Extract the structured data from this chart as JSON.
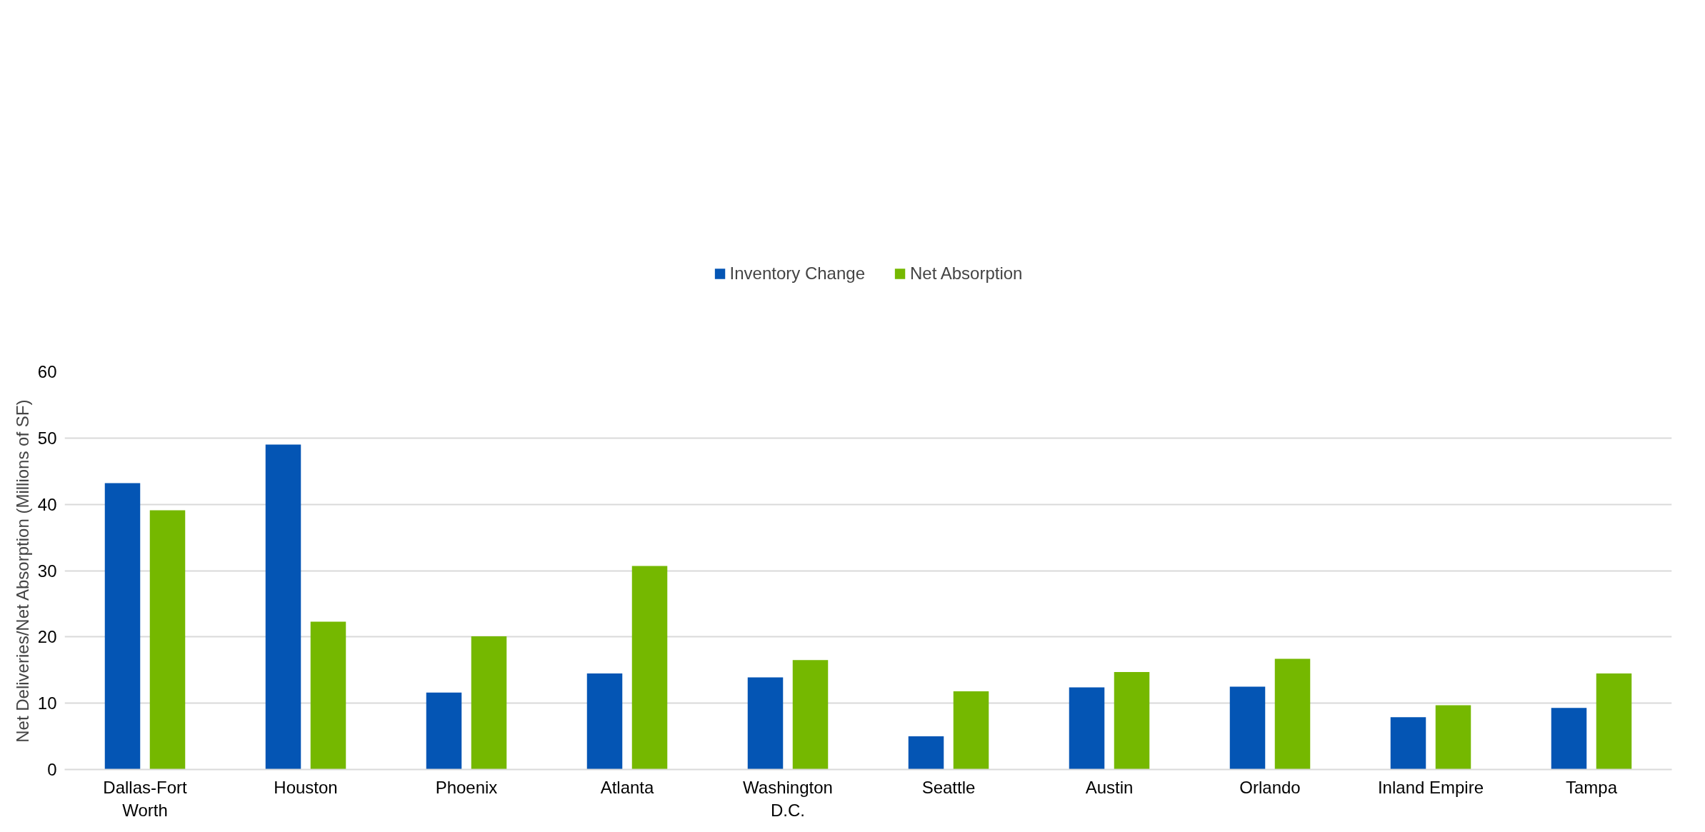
{
  "chart_data": {
    "type": "bar",
    "ylabel": "Net Deliveries/Net Absorption (Millions of SF)",
    "categories": [
      "Dallas-Fort\nWorth",
      "Houston",
      "Phoenix",
      "Atlanta",
      "Washington\nD.C.",
      "Seattle",
      "Austin",
      "Orlando",
      "Inland Empire",
      "Tampa"
    ],
    "series": [
      {
        "name": "Inventory Change",
        "color": "#0455b4",
        "values": [
          43.2,
          49.0,
          11.6,
          14.5,
          13.9,
          5.0,
          12.4,
          12.5,
          7.9,
          9.3
        ]
      },
      {
        "name": "Net Absorption",
        "color": "#75b800",
        "values": [
          39.1,
          22.3,
          20.1,
          30.7,
          16.5,
          11.8,
          14.7,
          16.7,
          9.7,
          14.5
        ]
      }
    ],
    "ylim": [
      0,
      60
    ],
    "yticks": [
      0,
      10,
      20,
      30,
      40,
      50,
      60
    ],
    "grid": "y",
    "legend": "top"
  }
}
